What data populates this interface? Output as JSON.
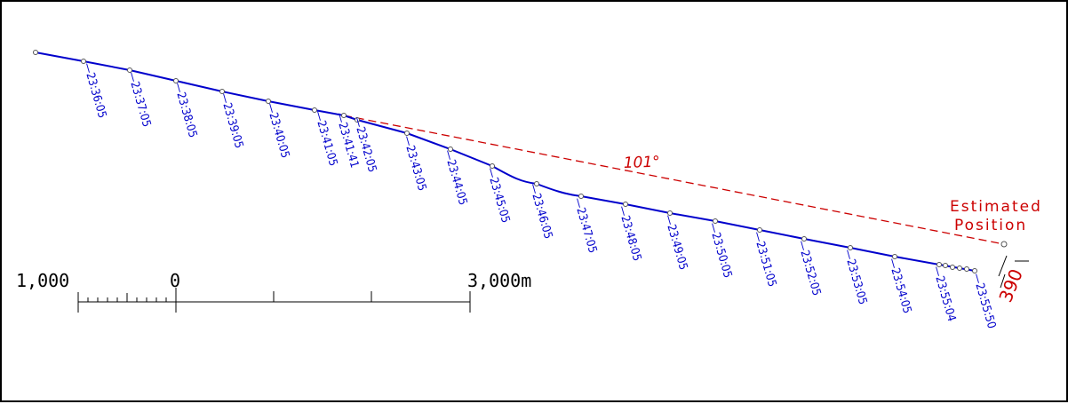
{
  "track": {
    "times": [
      "23:36:05",
      "23:37:05",
      "23:38:05",
      "23:39:05",
      "23:40:05",
      "23:41:05",
      "23:41:41",
      "23:42:05",
      "23:43:05",
      "23:44:05",
      "23:45:05",
      "23:46:05",
      "23:47:05",
      "23:48:05",
      "23:49:05",
      "23:50:05",
      "23:51:05",
      "23:52:05",
      "23:53:05",
      "23:54:05",
      "23:55:04",
      "23:55:50"
    ],
    "line_color": "#0000cc"
  },
  "estimate": {
    "heading": "101°",
    "label_line1": "Estimated",
    "label_line2": "Position",
    "offset": "390",
    "color": "#cc0000"
  },
  "scale_bar": {
    "left_label": "1,000",
    "zero_label": "0",
    "right_label": "3,000m"
  }
}
